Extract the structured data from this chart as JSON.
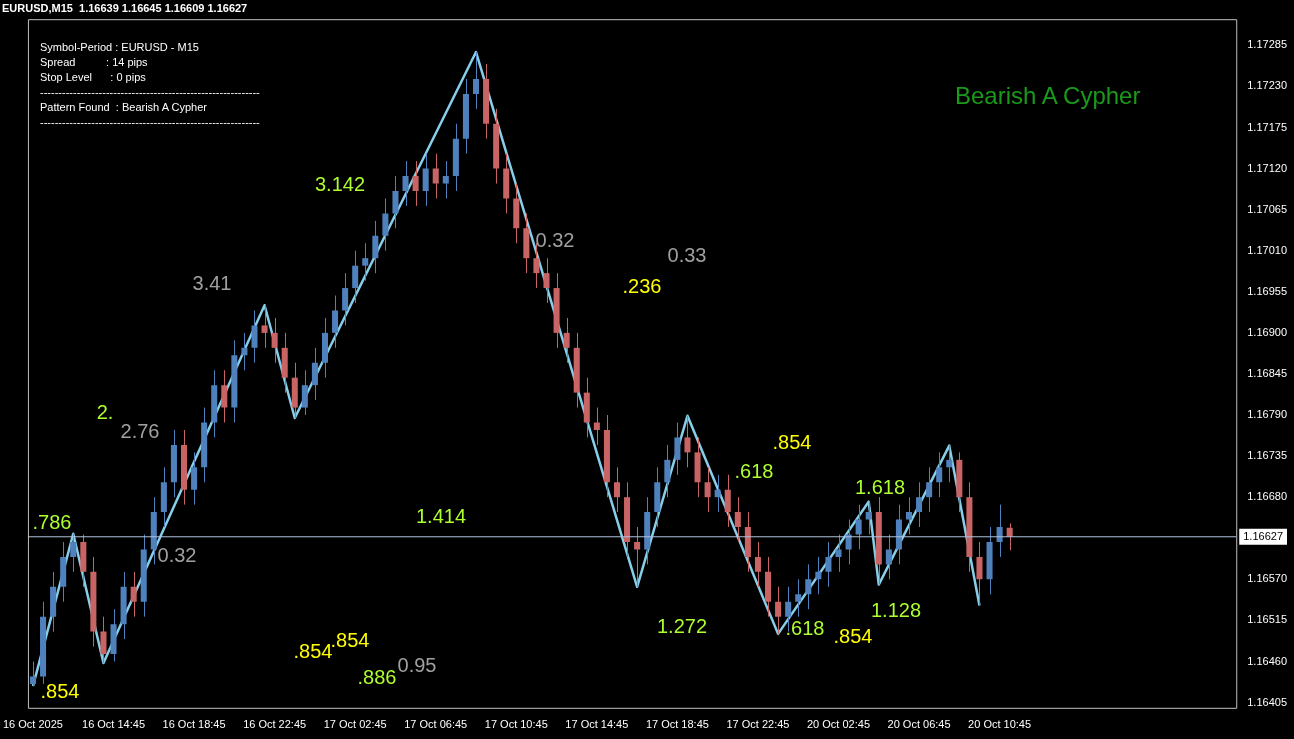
{
  "chart_data": {
    "type": "candlestick",
    "title": "EURUSD,M15  1.16639 1.16645 1.16609 1.16627",
    "categories": [
      "16 Oct 2025",
      null,
      null,
      null,
      null,
      null,
      null,
      null,
      "16 Oct 14:45",
      null,
      null,
      null,
      null,
      null,
      null,
      null,
      "16 Oct 18:45",
      null,
      null,
      null,
      null,
      null,
      null,
      null,
      "16 Oct 22:45",
      null,
      null,
      null,
      null,
      null,
      null,
      null,
      "17 Oct 02:45",
      null,
      null,
      null,
      null,
      null,
      null,
      null,
      "17 Oct 06:45",
      null,
      null,
      null,
      null,
      null,
      null,
      null,
      "17 Oct 10:45",
      null,
      null,
      null,
      null,
      null,
      null,
      null,
      "17 Oct 14:45",
      null,
      null,
      null,
      null,
      null,
      null,
      null,
      "17 Oct 18:45",
      null,
      null,
      null,
      null,
      null,
      null,
      null,
      "17 Oct 22:45",
      null,
      null,
      null,
      null,
      null,
      null,
      null,
      "20 Oct 02:45",
      null,
      null,
      null,
      null,
      null,
      null,
      null,
      "20 Oct 06:45",
      null,
      null,
      null,
      null,
      null,
      null,
      null,
      "20 Oct 10:45",
      null,
      null,
      null,
      null,
      null,
      null,
      null,
      null,
      null,
      null,
      null,
      null,
      null,
      null,
      null,
      null,
      null,
      null,
      null,
      null,
      null,
      null,
      null
    ],
    "ohlc": [
      [
        1.1643,
        1.1646,
        1.16427,
        1.1644
      ],
      [
        1.1644,
        1.1654,
        1.1643,
        1.1652
      ],
      [
        1.1652,
        1.1658,
        1.165,
        1.1656
      ],
      [
        1.1656,
        1.1662,
        1.1654,
        1.166
      ],
      [
        1.166,
        1.16631,
        1.1658,
        1.1662
      ],
      [
        1.1662,
        1.1663,
        1.1656,
        1.1658
      ],
      [
        1.1658,
        1.166,
        1.1648,
        1.165
      ],
      [
        1.165,
        1.1652,
        1.16458,
        1.1647
      ],
      [
        1.1647,
        1.1653,
        1.1646,
        1.1651
      ],
      [
        1.1651,
        1.1658,
        1.1649,
        1.1656
      ],
      [
        1.1656,
        1.1658,
        1.1652,
        1.1654
      ],
      [
        1.1654,
        1.1663,
        1.1652,
        1.1661
      ],
      [
        1.1661,
        1.1668,
        1.1659,
        1.1666
      ],
      [
        1.1666,
        1.1672,
        1.1664,
        1.167
      ],
      [
        1.167,
        1.1677,
        1.1668,
        1.1675
      ],
      [
        1.1675,
        1.1677,
        1.1667,
        1.1669
      ],
      [
        1.1669,
        1.1674,
        1.1667,
        1.1672
      ],
      [
        1.1672,
        1.168,
        1.167,
        1.1678
      ],
      [
        1.1678,
        1.1685,
        1.1676,
        1.1683
      ],
      [
        1.1683,
        1.1685,
        1.1678,
        1.168
      ],
      [
        1.168,
        1.1689,
        1.1678,
        1.1687
      ],
      [
        1.1687,
        1.169,
        1.1685,
        1.1688
      ],
      [
        1.1688,
        1.1693,
        1.1686,
        1.1691
      ],
      [
        1.1691,
        1.16937,
        1.1688,
        1.169
      ],
      [
        1.169,
        1.1692,
        1.1686,
        1.1688
      ],
      [
        1.1688,
        1.169,
        1.1682,
        1.1684
      ],
      [
        1.1684,
        1.1686,
        1.16786,
        1.168
      ],
      [
        1.168,
        1.1685,
        1.1679,
        1.1683
      ],
      [
        1.1683,
        1.1688,
        1.1681,
        1.1686
      ],
      [
        1.1686,
        1.1692,
        1.1684,
        1.169
      ],
      [
        1.169,
        1.1695,
        1.1688,
        1.1693
      ],
      [
        1.1693,
        1.1698,
        1.1691,
        1.1696
      ],
      [
        1.1696,
        1.1701,
        1.1694,
        1.1699
      ],
      [
        1.1699,
        1.1702,
        1.1697,
        1.17
      ],
      [
        1.17,
        1.1705,
        1.1698,
        1.1703
      ],
      [
        1.1703,
        1.1708,
        1.1701,
        1.1706
      ],
      [
        1.1706,
        1.1711,
        1.1704,
        1.1709
      ],
      [
        1.1709,
        1.1713,
        1.1707,
        1.1711
      ],
      [
        1.1711,
        1.1713,
        1.1707,
        1.1709
      ],
      [
        1.1709,
        1.1714,
        1.1707,
        1.1712
      ],
      [
        1.1712,
        1.1714,
        1.1708,
        1.171
      ],
      [
        1.171,
        1.1713,
        1.1708,
        1.1711
      ],
      [
        1.1711,
        1.1718,
        1.1709,
        1.1716
      ],
      [
        1.1716,
        1.1724,
        1.1714,
        1.1722
      ],
      [
        1.1722,
        1.17276,
        1.172,
        1.1724
      ],
      [
        1.1724,
        1.1726,
        1.1716,
        1.1718
      ],
      [
        1.1718,
        1.172,
        1.171,
        1.1712
      ],
      [
        1.1712,
        1.1714,
        1.1706,
        1.1708
      ],
      [
        1.1708,
        1.171,
        1.1702,
        1.1704
      ],
      [
        1.1704,
        1.1706,
        1.1698,
        1.17
      ],
      [
        1.17,
        1.1702,
        1.1696,
        1.1698
      ],
      [
        1.1698,
        1.17,
        1.1694,
        1.1696
      ],
      [
        1.1696,
        1.1698,
        1.1688,
        1.169
      ],
      [
        1.169,
        1.1692,
        1.1686,
        1.1688
      ],
      [
        1.1688,
        1.169,
        1.168,
        1.1682
      ],
      [
        1.1682,
        1.1684,
        1.1676,
        1.1678
      ],
      [
        1.1678,
        1.168,
        1.1675,
        1.1677
      ],
      [
        1.1677,
        1.1679,
        1.1668,
        1.167
      ],
      [
        1.167,
        1.1672,
        1.1666,
        1.1668
      ],
      [
        1.1668,
        1.167,
        1.166,
        1.1662
      ],
      [
        1.1662,
        1.1664,
        1.1656,
        1.1661
      ],
      [
        1.1661,
        1.1668,
        1.1659,
        1.1666
      ],
      [
        1.1666,
        1.1672,
        1.1664,
        1.167
      ],
      [
        1.167,
        1.1675,
        1.1668,
        1.1673
      ],
      [
        1.1673,
        1.1678,
        1.1671,
        1.1676
      ],
      [
        1.1676,
        1.16789,
        1.1672,
        1.1674
      ],
      [
        1.1674,
        1.1676,
        1.1668,
        1.167
      ],
      [
        1.167,
        1.1672,
        1.1666,
        1.1668
      ],
      [
        1.1668,
        1.1671,
        1.1666,
        1.1669
      ],
      [
        1.1669,
        1.1671,
        1.1664,
        1.1666
      ],
      [
        1.1666,
        1.1668,
        1.1662,
        1.1664
      ],
      [
        1.1664,
        1.1666,
        1.1658,
        1.166
      ],
      [
        1.166,
        1.1662,
        1.1656,
        1.1658
      ],
      [
        1.1658,
        1.166,
        1.1652,
        1.1654
      ],
      [
        1.1654,
        1.1656,
        1.16497,
        1.1652
      ],
      [
        1.1652,
        1.1656,
        1.165,
        1.1654
      ],
      [
        1.1654,
        1.1657,
        1.1652,
        1.1655
      ],
      [
        1.1655,
        1.1659,
        1.1653,
        1.1657
      ],
      [
        1.1657,
        1.166,
        1.1655,
        1.1658
      ],
      [
        1.1658,
        1.1662,
        1.1656,
        1.166
      ],
      [
        1.166,
        1.1663,
        1.1658,
        1.1661
      ],
      [
        1.1661,
        1.1665,
        1.1659,
        1.1663
      ],
      [
        1.1663,
        1.1667,
        1.1661,
        1.1665
      ],
      [
        1.1665,
        1.16674,
        1.1663,
        1.1666
      ],
      [
        1.1666,
        1.1668,
        1.16563,
        1.1659
      ],
      [
        1.1659,
        1.1663,
        1.1657,
        1.1661
      ],
      [
        1.1661,
        1.1667,
        1.1659,
        1.1665
      ],
      [
        1.1665,
        1.1668,
        1.1663,
        1.1666
      ],
      [
        1.1666,
        1.167,
        1.1664,
        1.1668
      ],
      [
        1.1668,
        1.1672,
        1.1666,
        1.167
      ],
      [
        1.167,
        1.1674,
        1.1668,
        1.1672
      ],
      [
        1.1672,
        1.16749,
        1.167,
        1.1673
      ],
      [
        1.1673,
        1.1674,
        1.1666,
        1.1668
      ],
      [
        1.1668,
        1.167,
        1.1658,
        1.166
      ],
      [
        1.166,
        1.1662,
        1.16535,
        1.1657
      ],
      [
        1.1657,
        1.1664,
        1.1655,
        1.1662
      ],
      [
        1.1662,
        1.1667,
        1.166,
        1.1664
      ],
      [
        1.16639,
        1.16645,
        1.16609,
        1.16627
      ],
      null,
      null,
      null,
      null,
      null,
      null,
      null,
      null,
      null,
      null,
      null,
      null,
      null,
      null,
      null,
      null,
      null,
      null,
      null,
      null,
      null,
      null
    ],
    "series": [
      {
        "type": "line",
        "color": "#87ceeb",
        "values": [
          1.16427,
          null,
          null,
          null,
          1.16631,
          null,
          null,
          1.16458,
          null,
          null,
          null,
          null,
          null,
          null,
          null,
          null,
          null,
          null,
          null,
          null,
          null,
          null,
          null,
          1.16937,
          null,
          null,
          1.16786,
          null,
          null,
          null,
          null,
          null,
          null,
          null,
          null,
          null,
          null,
          null,
          null,
          null,
          null,
          null,
          null,
          null,
          1.17276,
          null,
          null,
          null,
          null,
          null,
          null,
          null,
          null,
          null,
          null,
          null,
          null,
          null,
          null,
          null,
          1.1656,
          null,
          null,
          null,
          null,
          1.16789,
          null,
          null,
          null,
          null,
          null,
          null,
          null,
          null,
          1.16497,
          null,
          null,
          null,
          null,
          null,
          null,
          null,
          null,
          1.16674,
          1.16563,
          null,
          null,
          null,
          null,
          null,
          null,
          1.16749,
          null,
          null,
          1.16535,
          null,
          null,
          null,
          null,
          null,
          null,
          null,
          null,
          null,
          null,
          null,
          null,
          null,
          null,
          null,
          null,
          null,
          null,
          null,
          null,
          null,
          null,
          null,
          null,
          null
        ]
      }
    ],
    "marker": "none",
    "line_style": "solid",
    "ylim": [
      1.16398,
      1.1732
    ],
    "yticks": [
      {
        "value": 1.16405,
        "label": "1.16405"
      },
      {
        "value": 1.1646,
        "label": "1.16460"
      },
      {
        "value": 1.16515,
        "label": "1.16515"
      },
      {
        "value": 1.1657,
        "label": "1.16570"
      },
      {
        "value": 1.16625,
        "label": null
      },
      {
        "value": 1.1668,
        "label": "1.16680"
      },
      {
        "value": 1.16735,
        "label": "1.16735"
      },
      {
        "value": 1.1679,
        "label": "1.16790"
      },
      {
        "value": 1.16845,
        "label": "1.16845"
      },
      {
        "value": 1.169,
        "label": "1.16900"
      },
      {
        "value": 1.16955,
        "label": "1.16955"
      },
      {
        "value": 1.1701,
        "label": "1.17010"
      },
      {
        "value": 1.17065,
        "label": "1.17065"
      },
      {
        "value": 1.1712,
        "label": "1.17120"
      },
      {
        "value": 1.17175,
        "label": "1.17175"
      },
      {
        "value": 1.1723,
        "label": "1.17230"
      },
      {
        "value": 1.17285,
        "label": "1.17285"
      }
    ],
    "ref_lines": [
      {
        "axis": "y",
        "value": 1.16627,
        "label": "1.16627",
        "color": "#b0c4de"
      }
    ],
    "annotations": [
      "Symbol-Period : EURUSD - M15",
      "Spread          : 14 pips",
      "Stop Level      : 0 pips",
      "------------------------------------------------------------",
      "Pattern Found  : Bearish A Cypher",
      "------------------------------------------------------------",
      ".786",
      "2.",
      "2.76",
      "0.32",
      "3.41",
      "3.142",
      ".854",
      ".854",
      ".854",
      ".886",
      "0.95",
      "1.414",
      "0.32",
      ".236",
      "0.33",
      ".854",
      ".618",
      "1.272",
      ".618",
      "1.618",
      ".854",
      "1.128",
      "Bearish A Cypher"
    ]
  }
}
